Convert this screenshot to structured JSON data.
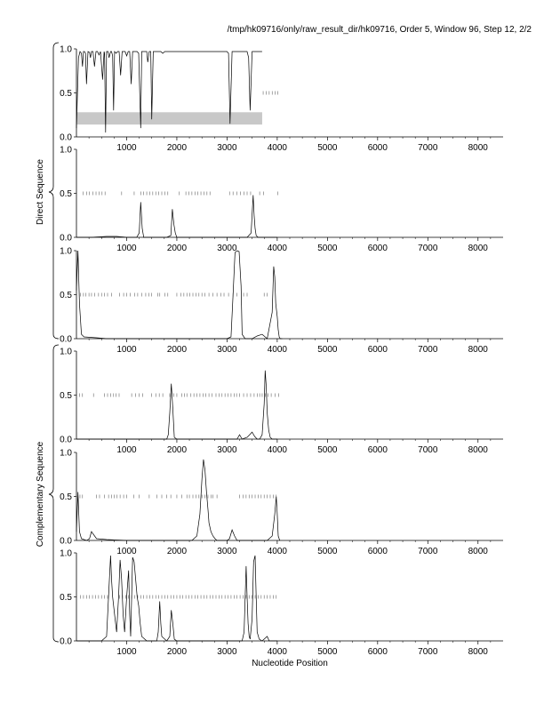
{
  "header": {
    "title": "/tmp/hk09716/only/raw_result_dir/hk09716, Order 5, Window 96, Step 12, 2/2"
  },
  "labels": {
    "x_axis": "Nucleotide Position",
    "group_direct": "Direct Sequence",
    "group_complementary": "Complementary Sequence"
  },
  "chart_data": [
    {
      "type": "line",
      "panel": "direct-frame-1",
      "group": "Direct Sequence",
      "xlim": [
        0,
        8500
      ],
      "ylim": [
        0,
        1
      ],
      "x_ticks": [
        1000,
        2000,
        3000,
        4000,
        5000,
        6000,
        7000,
        8000
      ],
      "y_ticks": [
        0.0,
        0.5,
        1.0
      ],
      "highlight_band": {
        "x": [
          0,
          3700
        ],
        "y": [
          0.14,
          0.28
        ]
      },
      "gene_ticks": {
        "y": 0.5,
        "x": [
          3720,
          3780,
          3840,
          3900,
          3960,
          4010
        ]
      },
      "series": [
        {
          "x": [
            0,
            40,
            70,
            100,
            120,
            140,
            160,
            180,
            200,
            230,
            260,
            280,
            300,
            330,
            360,
            390,
            420,
            450,
            480,
            520,
            550,
            560,
            580,
            600,
            630,
            650,
            680,
            700,
            720,
            740,
            760,
            790,
            820,
            850,
            880,
            910,
            940,
            970,
            1000,
            1030,
            1060,
            1090,
            1120,
            1150,
            1180,
            1210,
            1240,
            1280,
            1300,
            1340,
            1380,
            1400,
            1420,
            1450,
            1480,
            1500,
            1530,
            1560,
            1600,
            1640,
            1680,
            1720,
            1760,
            1800,
            1840,
            1870,
            1900,
            1930,
            1960,
            2000,
            2040,
            2080,
            2120,
            2160,
            2200,
            2240,
            2280,
            2320,
            2360,
            2400,
            2440,
            2480,
            2520,
            2560,
            2600,
            2640,
            2680,
            2720,
            2760,
            2800,
            2840,
            2880,
            2920,
            2960,
            3000,
            3030,
            3060,
            3100,
            3140,
            3180,
            3220,
            3260,
            3300,
            3330,
            3360,
            3400,
            3430,
            3460,
            3500,
            3540,
            3560,
            3600,
            3640,
            3680,
            3700
          ],
          "y": [
            0.1,
            0.9,
            0.97,
            0.95,
            0.8,
            0.97,
            0.97,
            0.95,
            0.6,
            0.97,
            0.96,
            0.9,
            0.97,
            0.97,
            0.8,
            0.97,
            0.97,
            0.93,
            0.97,
            0.65,
            0.97,
            0.95,
            0.05,
            0.97,
            0.97,
            0.9,
            0.97,
            0.97,
            0.92,
            0.3,
            0.97,
            0.95,
            0.97,
            0.97,
            0.7,
            0.97,
            0.97,
            0.97,
            0.92,
            0.97,
            0.97,
            0.6,
            0.97,
            0.97,
            0.97,
            0.97,
            0.95,
            0.1,
            0.97,
            0.97,
            0.97,
            0.97,
            0.85,
            0.97,
            0.97,
            0.2,
            0.97,
            0.97,
            0.97,
            0.97,
            0.97,
            0.95,
            0.97,
            0.97,
            0.97,
            0.97,
            0.97,
            0.97,
            0.97,
            0.97,
            0.97,
            0.97,
            0.97,
            0.97,
            0.97,
            0.97,
            0.97,
            0.97,
            0.97,
            0.97,
            0.97,
            0.97,
            0.97,
            0.97,
            0.97,
            0.97,
            0.97,
            0.97,
            0.97,
            0.97,
            0.97,
            0.97,
            0.97,
            0.97,
            0.97,
            0.95,
            0.15,
            0.97,
            0.97,
            0.97,
            0.97,
            0.97,
            0.97,
            0.97,
            0.97,
            0.97,
            0.9,
            0.3,
            0.97,
            0.97,
            0.97,
            0.97,
            0.97,
            0.97,
            0.97
          ]
        }
      ]
    },
    {
      "type": "line",
      "panel": "direct-frame-2",
      "group": "Direct Sequence",
      "xlim": [
        0,
        8500
      ],
      "ylim": [
        0,
        1
      ],
      "x_ticks": [
        1000,
        2000,
        3000,
        4000,
        5000,
        6000,
        7000,
        8000
      ],
      "y_ticks": [
        0.0,
        0.5,
        1.0
      ],
      "gene_ticks": {
        "y": 0.5,
        "x": [
          130,
          200,
          260,
          330,
          390,
          450,
          510,
          570,
          900,
          1150,
          1280,
          1340,
          1400,
          1460,
          1520,
          1580,
          1640,
          1700,
          1760,
          1820,
          2050,
          2180,
          2240,
          2300,
          2360,
          2420,
          2480,
          2540,
          2600,
          2660,
          3050,
          3120,
          3200,
          3270,
          3340,
          3400,
          3470,
          3650,
          3730,
          4010
        ]
      },
      "series": [
        {
          "x": [
            0,
            300,
            600,
            800,
            1000,
            1200,
            1250,
            1280,
            1310,
            1340,
            1400,
            1800,
            1880,
            1910,
            1940,
            1970,
            2000,
            2200,
            2800,
            3000,
            3400,
            3480,
            3520,
            3540,
            3560,
            3580,
            3620,
            3800,
            4000
          ],
          "y": [
            0,
            0,
            0.01,
            0.01,
            0,
            0,
            0.05,
            0.4,
            0.1,
            0,
            0,
            0,
            0.02,
            0.32,
            0.15,
            0.05,
            0,
            0,
            0,
            0,
            0,
            0.05,
            0.48,
            0.25,
            0.1,
            0.02,
            0,
            0,
            0
          ]
        }
      ]
    },
    {
      "type": "line",
      "panel": "direct-frame-3",
      "group": "Direct Sequence",
      "xlim": [
        0,
        8500
      ],
      "ylim": [
        0,
        1
      ],
      "x_ticks": [
        1000,
        2000,
        3000,
        4000,
        5000,
        6000,
        7000,
        8000
      ],
      "y_ticks": [
        0.0,
        0.5,
        1.0
      ],
      "gene_ticks": {
        "y": 0.5,
        "x": [
          80,
          140,
          190,
          250,
          300,
          360,
          440,
          500,
          560,
          620,
          700,
          860,
          940,
          1000,
          1070,
          1160,
          1220,
          1300,
          1380,
          1440,
          1500,
          1620,
          1660,
          1760,
          1820,
          2000,
          2080,
          2140,
          2200,
          2260,
          2320,
          2380,
          2440,
          2500,
          2560,
          2640,
          2720,
          2800,
          2880,
          2940,
          3030,
          3120,
          3200,
          3330,
          3400,
          3740,
          3800
        ]
      },
      "series": [
        {
          "x": [
            0,
            30,
            60,
            100,
            150,
            400,
            600,
            1000,
            2000,
            3000,
            3080,
            3120,
            3160,
            3200,
            3240,
            3280,
            3300,
            3360,
            3500,
            3600,
            3700,
            3800,
            3900,
            3930,
            3950,
            3970,
            4000,
            4020,
            4040,
            4060,
            4100
          ],
          "y": [
            0.55,
            1.0,
            0.4,
            0.05,
            0.02,
            0.01,
            0,
            0,
            0,
            0,
            0.02,
            0.5,
            0.98,
            1.0,
            0.99,
            0.6,
            0.05,
            0,
            0,
            0.03,
            0.05,
            0,
            0.3,
            0.82,
            0.7,
            0.4,
            0.25,
            0.1,
            0.02,
            0,
            0
          ]
        }
      ]
    },
    {
      "type": "line",
      "panel": "complementary-frame-1",
      "group": "Complementary Sequence",
      "xlim": [
        0,
        8500
      ],
      "ylim": [
        0,
        1
      ],
      "x_ticks": [
        1000,
        2000,
        3000,
        4000,
        5000,
        6000,
        7000,
        8000
      ],
      "y_ticks": [
        0.0,
        0.5,
        1.0
      ],
      "gene_ticks": {
        "y": 0.5,
        "x": [
          60,
          120,
          340,
          560,
          620,
          680,
          740,
          790,
          850,
          1100,
          1180,
          1250,
          1320,
          1500,
          1580,
          1650,
          1720,
          1860,
          1940,
          2000,
          2100,
          2150,
          2200,
          2280,
          2340,
          2400,
          2460,
          2520,
          2580,
          2640,
          2700,
          2780,
          2840,
          2900,
          2960,
          3020,
          3080,
          3140,
          3190,
          3250,
          3330,
          3400,
          3470,
          3540,
          3600,
          3650,
          3700,
          3760,
          3820,
          3880,
          3960,
          4030
        ]
      },
      "series": [
        {
          "x": [
            0,
            200,
            600,
            1000,
            1500,
            1800,
            1830,
            1860,
            1890,
            1920,
            1950,
            2000,
            2500,
            3000,
            3200,
            3250,
            3300,
            3400,
            3450,
            3500,
            3550,
            3600,
            3650,
            3700,
            3740,
            3760,
            3780,
            3800,
            3830,
            3860,
            3900,
            4000
          ],
          "y": [
            0,
            0,
            0,
            0,
            0,
            0,
            0.05,
            0.3,
            0.63,
            0.35,
            0.02,
            0,
            0,
            0,
            0,
            0.05,
            0,
            0.02,
            0.05,
            0.08,
            0.03,
            0,
            0,
            0.05,
            0.4,
            0.78,
            0.6,
            0.3,
            0.1,
            0.02,
            0,
            0
          ]
        }
      ]
    },
    {
      "type": "line",
      "panel": "complementary-frame-2",
      "group": "Complementary Sequence",
      "xlim": [
        0,
        8500
      ],
      "ylim": [
        0,
        1
      ],
      "x_ticks": [
        1000,
        2000,
        3000,
        4000,
        5000,
        6000,
        7000,
        8000
      ],
      "y_ticks": [
        0.0,
        0.5,
        1.0
      ],
      "gene_ticks": {
        "y": 0.5,
        "x": [
          70,
          120,
          400,
          460,
          560,
          640,
          700,
          750,
          810,
          870,
          940,
          1000,
          1140,
          1250,
          1450,
          1600,
          1700,
          1800,
          1880,
          2000,
          2100,
          2200,
          2250,
          2320,
          2380,
          2440,
          2500,
          2560,
          2620,
          2680,
          2720,
          2800,
          3250,
          3320,
          3380,
          3440,
          3500,
          3560,
          3620,
          3680,
          3740,
          3800,
          3860,
          3920,
          3980
        ]
      },
      "series": [
        {
          "x": [
            0,
            30,
            60,
            100,
            200,
            260,
            300,
            400,
            600,
            1000,
            1500,
            2000,
            2300,
            2400,
            2460,
            2500,
            2530,
            2560,
            2590,
            2620,
            2640,
            2680,
            2720,
            2760,
            2800,
            2900,
            3000,
            3050,
            3100,
            3150,
            3200,
            3500,
            3800,
            3900,
            3950,
            3980,
            4000,
            4020,
            4050
          ],
          "y": [
            0.1,
            0.55,
            0.1,
            0.02,
            0,
            0.02,
            0.1,
            0.02,
            0.01,
            0,
            0,
            0,
            0,
            0.05,
            0.3,
            0.7,
            0.92,
            0.8,
            0.55,
            0.35,
            0.2,
            0.1,
            0.05,
            0.02,
            0,
            0,
            0,
            0.02,
            0.12,
            0.05,
            0,
            0,
            0,
            0.05,
            0.3,
            0.5,
            0.3,
            0.05,
            0
          ]
        }
      ]
    },
    {
      "type": "line",
      "panel": "complementary-frame-3",
      "group": "Complementary Sequence",
      "xlim": [
        0,
        8500
      ],
      "ylim": [
        0,
        1
      ],
      "x_ticks": [
        1000,
        2000,
        3000,
        4000,
        5000,
        6000,
        7000,
        8000
      ],
      "y_ticks": [
        0.0,
        0.5,
        1.0
      ],
      "gene_ticks": {
        "y": 0.5,
        "x": [
          80,
          140,
          200,
          260,
          320,
          380,
          440,
          500,
          560,
          620,
          860,
          920,
          980,
          1040,
          1100,
          1160,
          1220,
          1280,
          1340,
          1400,
          1460,
          1520,
          1580,
          1640,
          1700,
          1760,
          1820,
          1880,
          1940,
          2000,
          2060,
          2120,
          2180,
          2240,
          2300,
          2360,
          2420,
          2480,
          2540,
          2600,
          2660,
          2720,
          2780,
          2840,
          2900,
          2960,
          3020,
          3080,
          3140,
          3200,
          3260,
          3320,
          3380,
          3440,
          3500,
          3560,
          3620,
          3680,
          3740,
          3800,
          3860,
          3920,
          3980
        ]
      },
      "series": [
        {
          "x": [
            0,
            500,
            600,
            640,
            680,
            700,
            720,
            760,
            800,
            840,
            870,
            900,
            930,
            960,
            1000,
            1040,
            1060,
            1080,
            1100,
            1120,
            1150,
            1180,
            1210,
            1240,
            1270,
            1300,
            1400,
            1600,
            1630,
            1660,
            1680,
            1700,
            1800,
            1860,
            1890,
            1920,
            1950,
            2000,
            2500,
            3000,
            3300,
            3340,
            3380,
            3400,
            3420,
            3440,
            3460,
            3500,
            3530,
            3560,
            3580,
            3600,
            3640,
            3700,
            3760,
            3800,
            3840,
            4000
          ],
          "y": [
            0,
            0,
            0.05,
            0.5,
            0.97,
            0.7,
            0.5,
            0.3,
            0.1,
            0.5,
            0.92,
            0.7,
            0.3,
            0.1,
            0.5,
            0.8,
            0.3,
            0.05,
            0.5,
            0.95,
            0.9,
            0.7,
            0.5,
            0.4,
            0.2,
            0.05,
            0,
            0,
            0.1,
            0.45,
            0.2,
            0.05,
            0,
            0.05,
            0.35,
            0.2,
            0.02,
            0,
            0,
            0,
            0,
            0.1,
            0.85,
            0.5,
            0.2,
            0.05,
            0.02,
            0.25,
            0.9,
            0.97,
            0.5,
            0.1,
            0.02,
            0,
            0.03,
            0.05,
            0,
            0
          ]
        }
      ]
    }
  ]
}
